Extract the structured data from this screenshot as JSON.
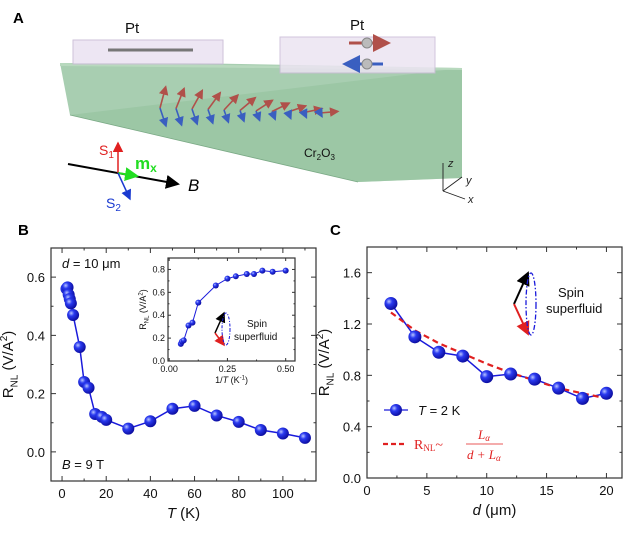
{
  "panels": {
    "A": {
      "label": "A",
      "pt_left": "Pt",
      "pt_right": "Pt",
      "material": {
        "base": "Cr",
        "sub1": "2",
        "mid": "O",
        "sub2": "3"
      },
      "s1": {
        "base": "S",
        "sub": "1"
      },
      "s2": {
        "base": "S",
        "sub": "2"
      },
      "mx": {
        "base": "m",
        "sub": "x"
      },
      "field": "B",
      "axes": {
        "z": "z",
        "y": "y",
        "x": "x"
      },
      "colors": {
        "slab": "#9ec9a8",
        "pt": "#ece4f2",
        "spin_up": "#b0504a",
        "spin_down": "#3a5fc0"
      }
    },
    "B": {
      "label": "B"
    },
    "C": {
      "label": "C"
    }
  },
  "chart_data": [
    {
      "id": "B-main",
      "type": "line",
      "xlabel": {
        "italic": "T",
        "rest": " (K)"
      },
      "ylabel": {
        "base": "R",
        "sub": "NL",
        "rest": " (V/A",
        "sup": "2",
        "end": ")"
      },
      "xlim": [
        -5,
        115
      ],
      "ylim": [
        -0.1,
        0.7
      ],
      "xticks": [
        "0",
        "20",
        "40",
        "60",
        "80",
        "100"
      ],
      "yticks": [
        "0.0",
        "0.2",
        "0.4",
        "0.6"
      ],
      "annotations": {
        "d": {
          "italic": "d",
          "rest": " = 10 μm"
        },
        "B": {
          "italic": "B",
          "rest": " = 9 T"
        }
      },
      "series": [
        {
          "name": "R_NL vs T",
          "color": "#1a1adb",
          "x": [
            2,
            2.5,
            3,
            3.5,
            4,
            5,
            8,
            10,
            12,
            15,
            18,
            20,
            30,
            40,
            50,
            60,
            70,
            80,
            90,
            100,
            110
          ],
          "y": [
            0.56,
            0.565,
            0.54,
            0.525,
            0.51,
            0.47,
            0.36,
            0.24,
            0.22,
            0.13,
            0.12,
            0.11,
            0.08,
            0.105,
            0.148,
            0.158,
            0.125,
            0.103,
            0.075,
            0.063,
            0.048
          ]
        }
      ]
    },
    {
      "id": "B-inset",
      "type": "line",
      "xlabel": {
        "base": "1/",
        "italic": "T",
        "rest": " (K",
        "sup": "-1",
        "end": ")"
      },
      "ylabel": {
        "base": "R",
        "sub": "NL",
        "rest": " (V/A",
        "sup": "2",
        "end": ")"
      },
      "xlim": [
        -0.005,
        0.54
      ],
      "ylim": [
        0,
        0.9
      ],
      "xticks": [
        "0.00",
        "0.25",
        "0.50"
      ],
      "yticks": [
        "0.0",
        "0.2",
        "0.4",
        "0.6",
        "0.8"
      ],
      "annotation": [
        "Spin",
        "superfluid"
      ],
      "series": [
        {
          "name": "R_NL vs 1/T",
          "color": "#1a1adb",
          "x": [
            0.05,
            0.055,
            0.0625,
            0.083,
            0.1,
            0.125,
            0.2,
            0.25,
            0.286,
            0.333,
            0.364,
            0.4,
            0.444,
            0.5
          ],
          "y": [
            0.15,
            0.17,
            0.18,
            0.31,
            0.335,
            0.51,
            0.66,
            0.72,
            0.74,
            0.76,
            0.76,
            0.79,
            0.78,
            0.79
          ]
        }
      ]
    },
    {
      "id": "C",
      "type": "line",
      "xlabel": {
        "italic": "d",
        "rest": " (μm)"
      },
      "ylabel": {
        "base": "R",
        "sub": "NL",
        "rest": " (V/A",
        "sup": "2",
        "end": ")"
      },
      "xlim": [
        0,
        21.3
      ],
      "ylim": [
        0,
        1.8
      ],
      "xticks": [
        "0",
        "5",
        "10",
        "15",
        "20"
      ],
      "yticks": [
        "0.0",
        "0.4",
        "0.8",
        "1.2",
        "1.6"
      ],
      "annotation": [
        "Spin",
        "superfluid"
      ],
      "legend": {
        "placement": "bottom-left",
        "data": {
          "italic": "T",
          "rest": " = 2 K"
        },
        "fit": {
          "base": "R",
          "sub": "NL",
          "tilde": "~",
          "num": "L",
          "num_sub": "α",
          "den": "d + L",
          "den_sub": "α"
        }
      },
      "series": [
        {
          "name": "T = 2 K",
          "color": "#1a1adb",
          "x": [
            2,
            4,
            6,
            8,
            10,
            12,
            14,
            16,
            18,
            20
          ],
          "y": [
            1.36,
            1.1,
            0.98,
            0.95,
            0.79,
            0.81,
            0.77,
            0.7,
            0.62,
            0.66
          ]
        },
        {
          "name": "fit",
          "color": "#e02020",
          "dashed": true,
          "x": [
            2,
            4,
            6,
            8,
            10,
            12,
            14,
            16,
            18,
            20
          ],
          "y": [
            1.29,
            1.15,
            1.05,
            0.97,
            0.89,
            0.82,
            0.76,
            0.7,
            0.66,
            0.62
          ]
        }
      ]
    }
  ]
}
